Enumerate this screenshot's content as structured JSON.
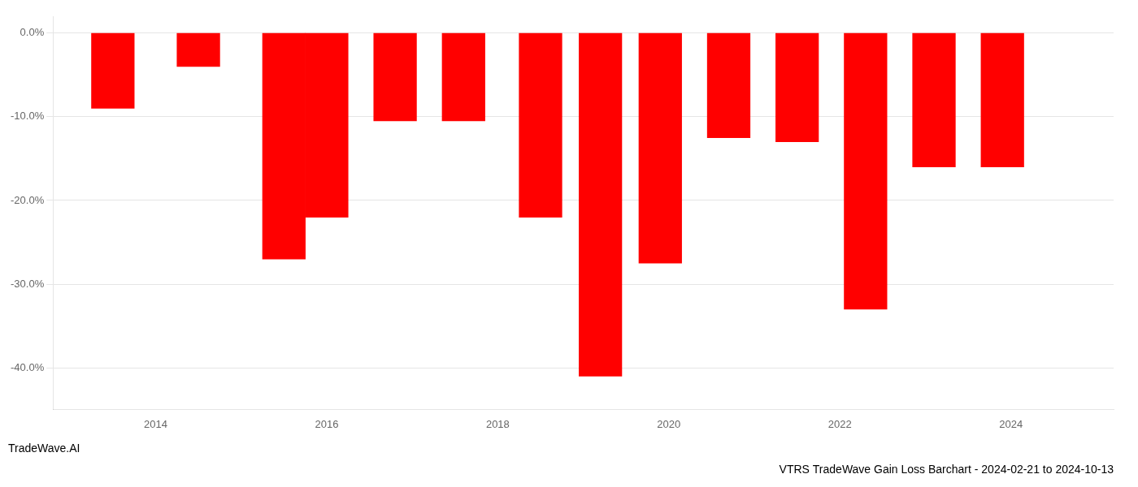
{
  "chart_data": {
    "type": "bar",
    "title": "VTRS TradeWave Gain Loss Barchart - 2024-02-21 to 2024-10-13",
    "subtitle": "TradeWave.AI",
    "x": [
      2013.5,
      2014.5,
      2015.5,
      2016.0,
      2016.8,
      2017.6,
      2018.5,
      2019.2,
      2019.9,
      2020.7,
      2021.5,
      2022.3,
      2023.1,
      2023.9
    ],
    "values": [
      -9.0,
      -4.0,
      -27.0,
      -22.0,
      -10.5,
      -10.5,
      -22.0,
      -41.0,
      -27.5,
      -12.5,
      -13.0,
      -33.0,
      -16.0,
      -16.0
    ],
    "color": "#ff0000",
    "xlim": [
      2012.8,
      2025.2
    ],
    "xticks": [
      2014,
      2016,
      2018,
      2020,
      2022,
      2024
    ],
    "ylim": [
      -45,
      2
    ],
    "yticks": [
      {
        "value": 0,
        "label": "0.0%"
      },
      {
        "value": -10,
        "label": "-10.0%"
      },
      {
        "value": -20,
        "label": "-20.0%"
      },
      {
        "value": -30,
        "label": "-30.0%"
      },
      {
        "value": -40,
        "label": "-40.0%"
      }
    ],
    "grid": true
  }
}
